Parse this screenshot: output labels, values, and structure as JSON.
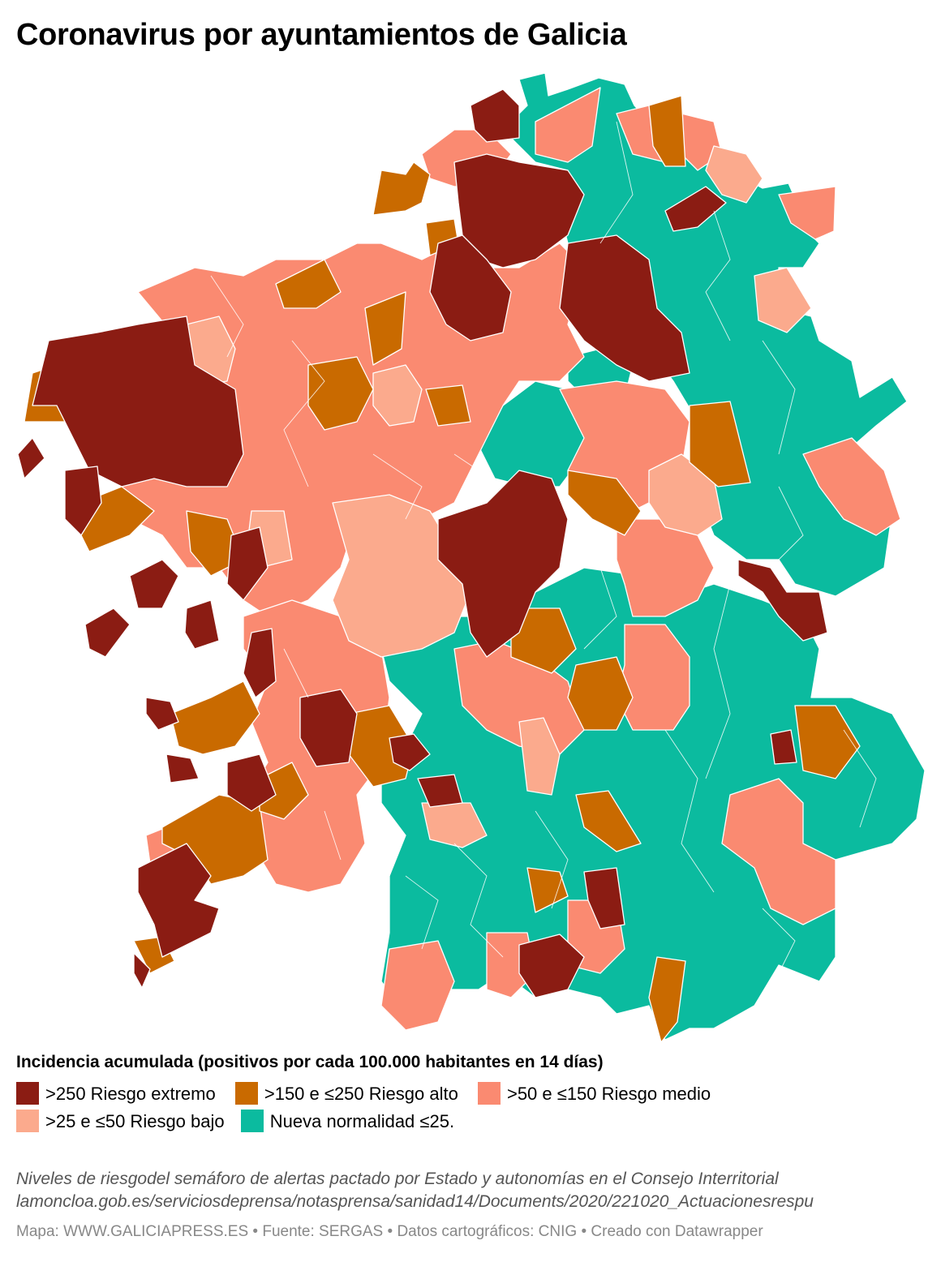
{
  "title": "Coronavirus por ayuntamientos de Galicia",
  "legend": {
    "title": "Incidencia acumulada (positivos por cada 100.000 habitantes en 14 días)",
    "items": [
      {
        "label": ">250 Riesgo extremo",
        "color": "#8b1c13"
      },
      {
        "label": ">150 e ≤250 Riesgo alto",
        "color": "#c96a00"
      },
      {
        "label": ">50 e ≤150 Riesgo medio",
        "color": "#fa8a71"
      },
      {
        "label": ">25 e ≤50 Riesgo bajo",
        "color": "#fbaa8d"
      },
      {
        "label": "Nueva normalidad ≤25.",
        "color": "#0bbb9f"
      }
    ]
  },
  "notes": {
    "line1": "Niveles de riesgodel semáforo de alertas pactado por Estado y autonomías en el Consejo Interritorial",
    "line2": "lamoncloa.gob.es/serviciosdeprensa/notasprensa/sanidad14/Documents/2020/221020_Actuacionesrespu"
  },
  "footer": "Mapa: WWW.GALICIAPRESS.ES • Fuente: SERGAS • Datos cartográficos: CNIG • Creado con Datawrapper"
}
